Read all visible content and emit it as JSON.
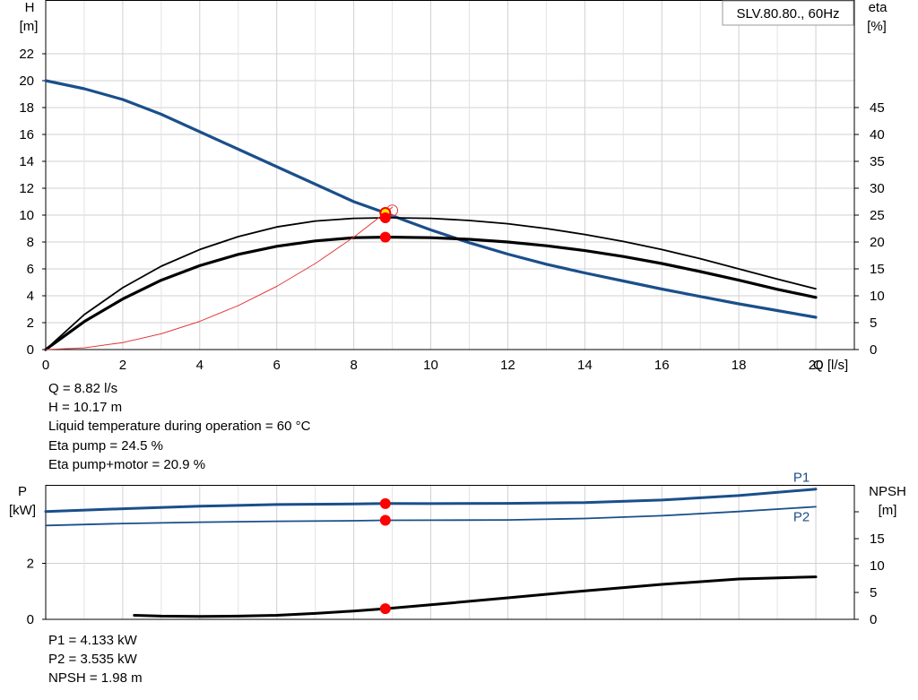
{
  "chart_data": [
    {
      "type": "line",
      "title": "SLV.80.80., 60Hz",
      "xlabel": "Q [l/s]",
      "ylabel_left": [
        "H",
        "[m]"
      ],
      "ylabel_right": [
        "eta",
        "[%]"
      ],
      "xlim": [
        0,
        21
      ],
      "ylim_left": [
        0,
        26
      ],
      "ylim_right": [
        0,
        65
      ],
      "x_ticks": [
        0,
        2,
        4,
        6,
        8,
        10,
        12,
        14,
        16,
        18,
        20
      ],
      "y_ticks_left": [
        0,
        2,
        4,
        6,
        8,
        10,
        12,
        14,
        16,
        18,
        20,
        22
      ],
      "y_ticks_right": [
        0,
        5,
        10,
        15,
        20,
        25,
        30,
        35,
        40,
        45
      ],
      "grid": true,
      "series": [
        {
          "axis": "left",
          "color": "#1a4f8a",
          "width": 3.2,
          "x": [
            0,
            1,
            2,
            3,
            4,
            5,
            6,
            7,
            8,
            8.82,
            9,
            10,
            11,
            12,
            13,
            14,
            15,
            16,
            17,
            18,
            19,
            20
          ],
          "y": [
            20,
            19.4,
            18.6,
            17.5,
            16.2,
            14.9,
            13.6,
            12.3,
            11.0,
            10.17,
            9.95,
            8.9,
            7.95,
            7.1,
            6.35,
            5.7,
            5.1,
            4.5,
            3.95,
            3.4,
            2.9,
            2.4
          ]
        },
        {
          "axis": "right",
          "color": "#000000",
          "width": 1.8,
          "x": [
            0,
            1,
            2,
            3,
            4,
            5,
            6,
            7,
            8,
            8.82,
            9,
            10,
            11,
            12,
            13,
            14,
            15,
            16,
            17,
            18,
            19,
            20
          ],
          "y": [
            0,
            6.5,
            11.5,
            15.5,
            18.6,
            21.0,
            22.8,
            23.9,
            24.4,
            24.5,
            24.5,
            24.4,
            24.0,
            23.4,
            22.5,
            21.4,
            20.1,
            18.6,
            16.9,
            15.0,
            13.1,
            11.3
          ]
        },
        {
          "axis": "right",
          "color": "#000000",
          "width": 3.2,
          "x": [
            0,
            1,
            2,
            3,
            4,
            5,
            6,
            7,
            8,
            8.82,
            9,
            10,
            11,
            12,
            13,
            14,
            15,
            16,
            17,
            18,
            19,
            20
          ],
          "y": [
            0,
            5.2,
            9.4,
            12.9,
            15.6,
            17.7,
            19.2,
            20.2,
            20.8,
            20.9,
            20.9,
            20.8,
            20.5,
            20.0,
            19.3,
            18.4,
            17.3,
            16.0,
            14.5,
            12.9,
            11.2,
            9.7
          ]
        },
        {
          "axis": "left",
          "color": "#e23b3b",
          "width": 1,
          "x": [
            0,
            1,
            2,
            3,
            4,
            5,
            6,
            7,
            8,
            9
          ],
          "y": [
            0,
            0.13,
            0.52,
            1.17,
            2.09,
            3.27,
            4.7,
            6.4,
            8.36,
            10.58
          ]
        }
      ],
      "operating_points": [
        {
          "axis": "left",
          "x": 8.82,
          "y": 10.17,
          "fill": "#ffe600"
        },
        {
          "axis": "right",
          "x": 8.82,
          "y": 24.5,
          "fill": "#ff0000"
        },
        {
          "axis": "right",
          "x": 8.82,
          "y": 20.9,
          "fill": "#ff0000"
        }
      ],
      "target_marker": {
        "axis": "left",
        "x": 9.0,
        "y": 10.35
      }
    },
    {
      "type": "line",
      "title": "",
      "xlabel": "",
      "ylabel_left": [
        "P",
        "[kW]"
      ],
      "ylabel_right": [
        "NPSH",
        "[m]"
      ],
      "xlim": [
        0,
        21
      ],
      "ylim_left": [
        0,
        4.8
      ],
      "ylim_right": [
        0,
        25
      ],
      "x_ticks": [
        0,
        2,
        4,
        6,
        8,
        10,
        12,
        14,
        16,
        18,
        20
      ],
      "y_ticks_left": [
        0,
        2
      ],
      "y_ticks_right": [
        0,
        5,
        10,
        15
      ],
      "grid": true,
      "series": [
        {
          "name": "P1",
          "axis": "left",
          "color": "#1a4f8a",
          "width": 3,
          "x": [
            0,
            2,
            4,
            6,
            8,
            8.82,
            10,
            12,
            14,
            16,
            18,
            20
          ],
          "y": [
            3.85,
            3.95,
            4.04,
            4.1,
            4.12,
            4.133,
            4.13,
            4.14,
            4.17,
            4.26,
            4.42,
            4.65
          ],
          "label": "P1"
        },
        {
          "name": "P2",
          "axis": "left",
          "color": "#1a4f8a",
          "width": 1.8,
          "x": [
            0,
            2,
            4,
            6,
            8,
            8.82,
            10,
            12,
            14,
            16,
            18,
            20
          ],
          "y": [
            3.35,
            3.42,
            3.47,
            3.5,
            3.52,
            3.535,
            3.54,
            3.55,
            3.6,
            3.7,
            3.85,
            4.02
          ],
          "label": "P2"
        },
        {
          "axis": "right",
          "color": "#000000",
          "width": 3,
          "x": [
            2.3,
            3,
            4,
            5,
            6,
            7,
            8,
            8.82,
            10,
            12,
            14,
            16,
            18,
            20
          ],
          "y": [
            0.75,
            0.6,
            0.55,
            0.6,
            0.75,
            1.1,
            1.55,
            1.98,
            2.7,
            4.0,
            5.3,
            6.5,
            7.5,
            7.9
          ]
        }
      ],
      "operating_points": [
        {
          "axis": "left",
          "x": 8.82,
          "y": 4.133,
          "fill": "#ff0000"
        },
        {
          "axis": "left",
          "x": 8.82,
          "y": 3.535,
          "fill": "#ff0000"
        },
        {
          "axis": "right",
          "x": 8.82,
          "y": 1.98,
          "fill": "#ff0000"
        }
      ]
    }
  ],
  "info_top": [
    "Q = 8.82 l/s",
    "H = 10.17 m",
    "Liquid temperature during operation = 60 °C",
    "Eta pump = 24.5 %",
    "Eta pump+motor = 20.9 %"
  ],
  "info_bottom": [
    "P1 = 4.133 kW",
    "P2 = 3.535 kW",
    "NPSH = 1.98 m"
  ]
}
